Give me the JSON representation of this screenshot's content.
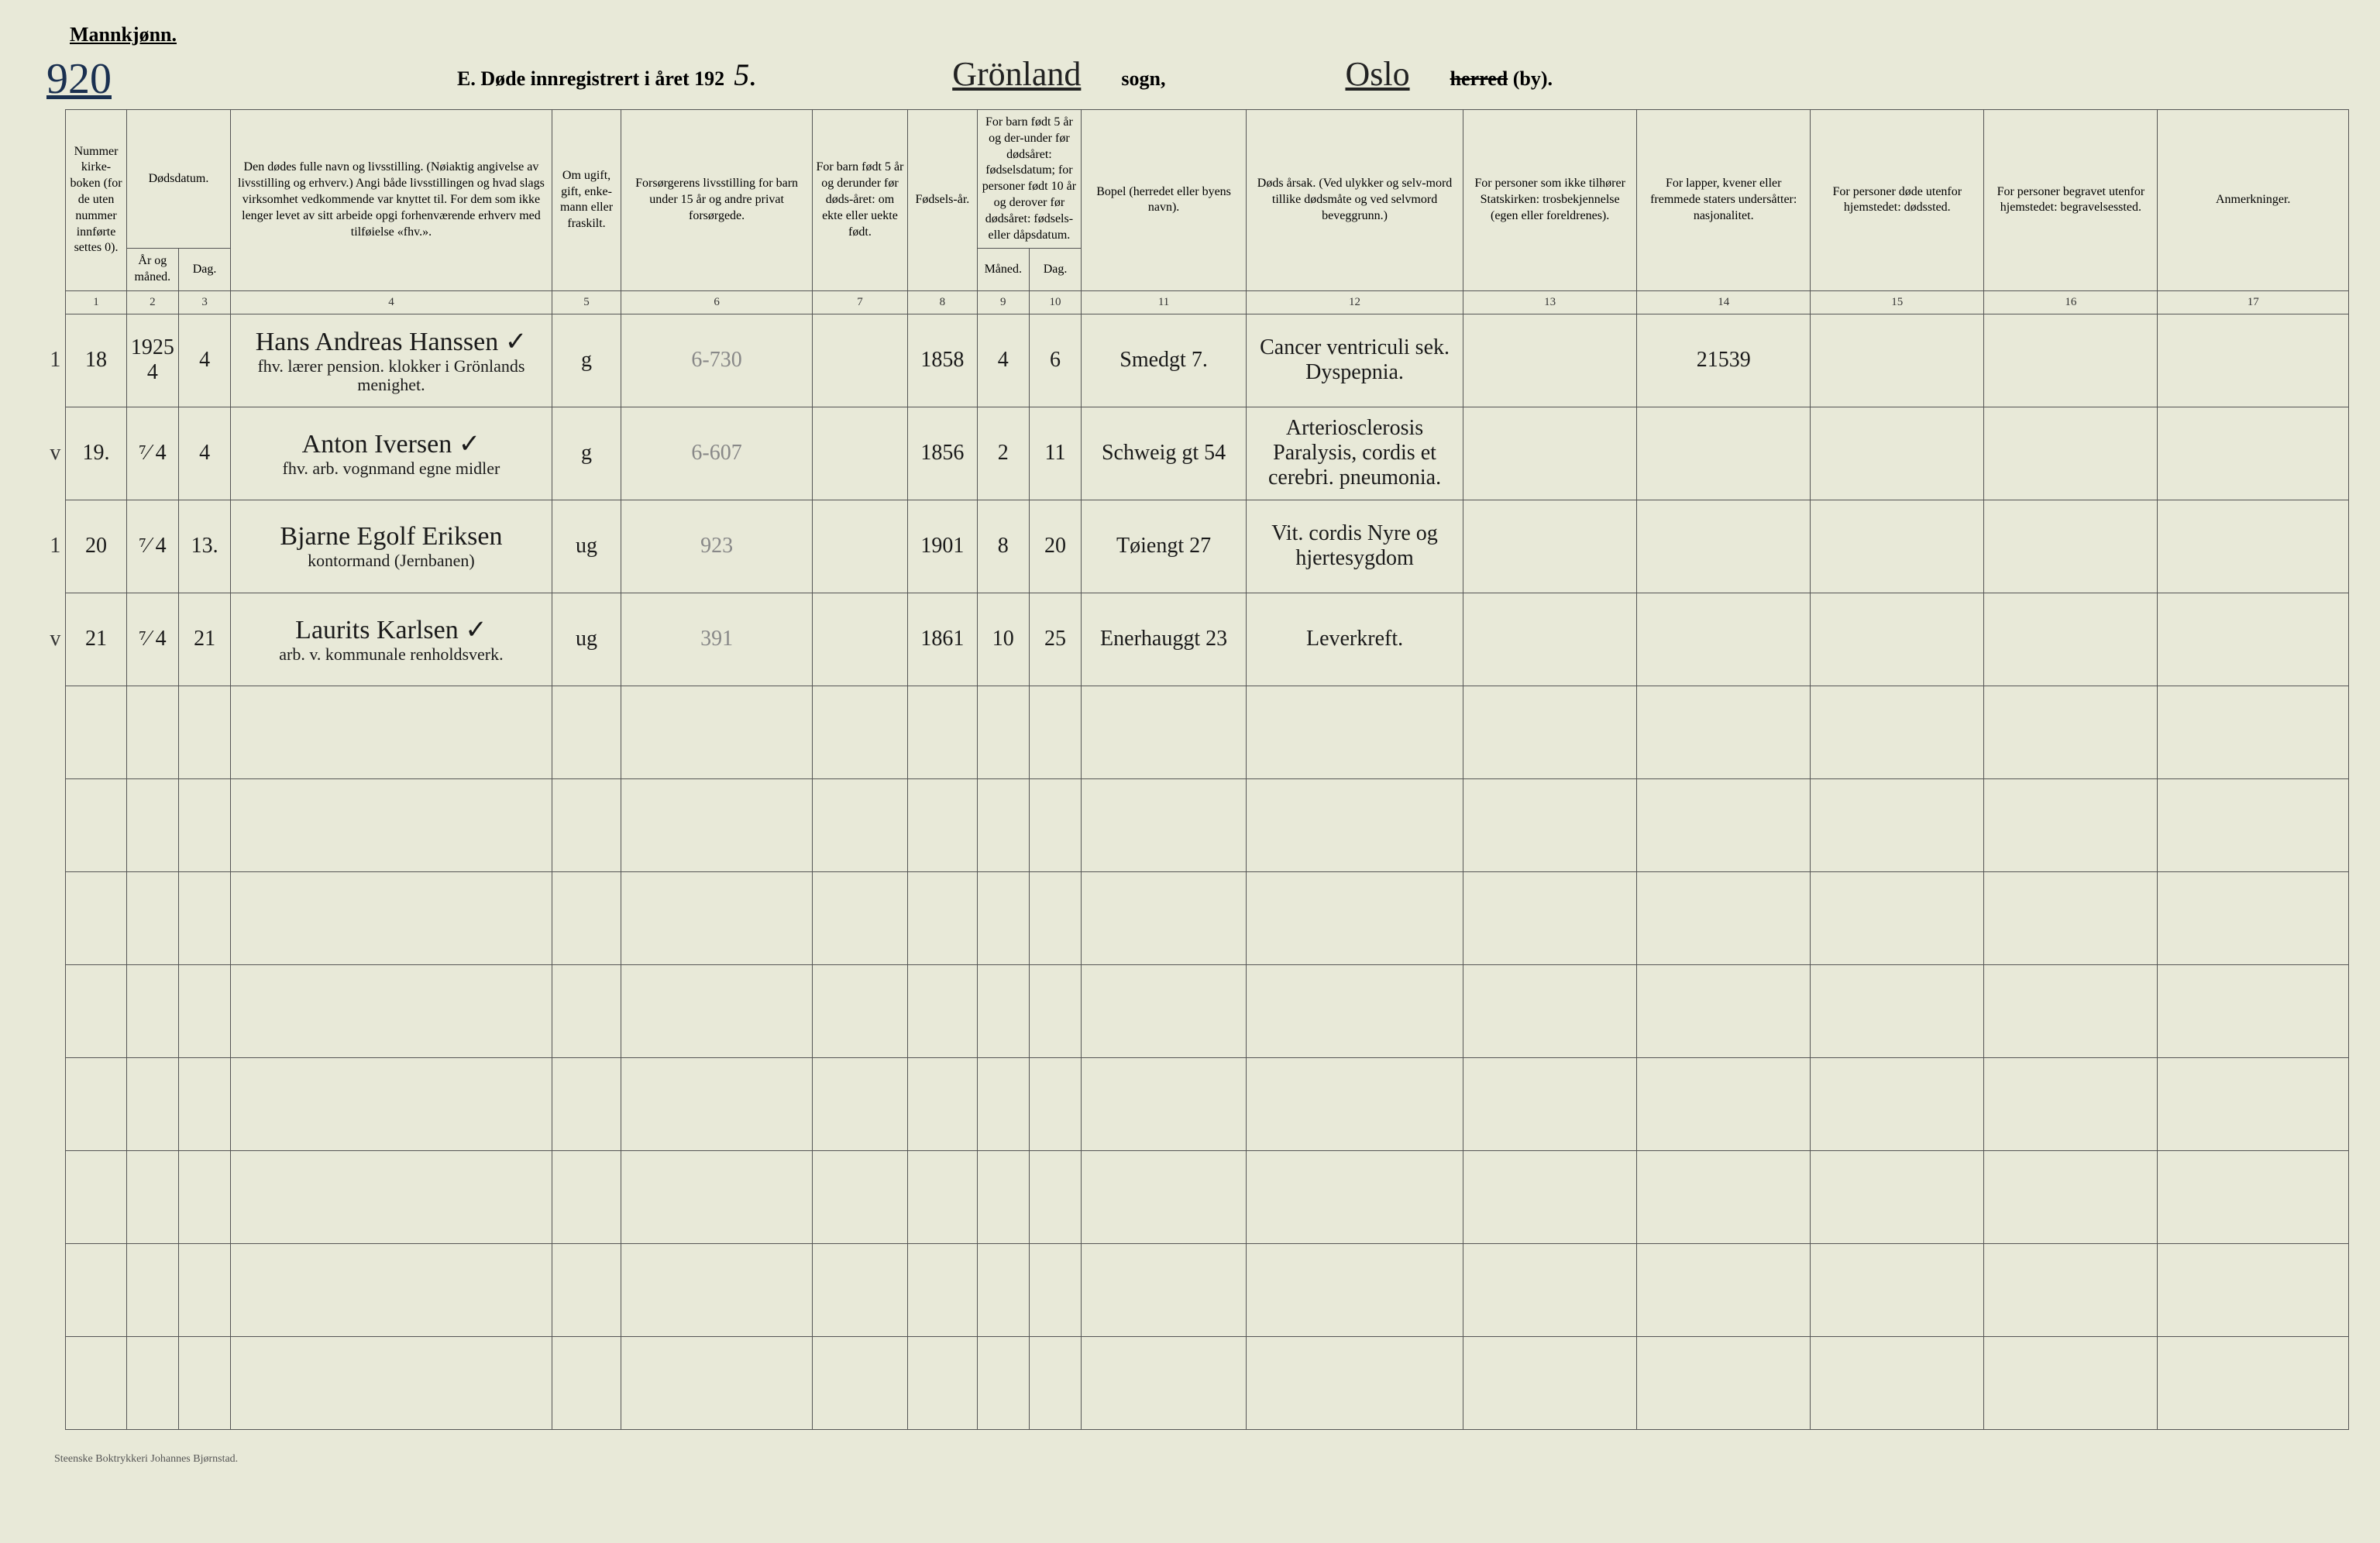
{
  "header": {
    "gender": "Mannkjønn.",
    "page_number": "920",
    "title_prefix": "E.  Døde innregistrert i året 192",
    "year_digit": "5.",
    "sogn": "Grönland",
    "sogn_label": "sogn,",
    "herred": "Oslo",
    "herred_label_struck": "herred",
    "herred_label_suffix": " (by)."
  },
  "column_headers": {
    "c1": "Nummer kirke-boken (for de uten nummer innførte settes 0).",
    "c2_group": "Dødsdatum.",
    "c2": "År og måned.",
    "c3": "Dag.",
    "c4": "Den dødes fulle navn og livsstilling. (Nøiaktig angivelse av livsstilling og erhverv.) Angi både livsstillingen og hvad slags virksomhet vedkommende var knyttet til. For dem som ikke lenger levet av sitt arbeide opgi forhenværende erhverv med tilføielse «fhv.».",
    "c5": "Om ugift, gift, enke-mann eller fraskilt.",
    "c6": "Forsørgerens livsstilling for barn under 15 år og andre privat forsørgede.",
    "c7": "For barn født 5 år og derunder før døds-året: om ekte eller uekte født.",
    "c8": "Fødsels-år.",
    "c9_group": "For barn født 5 år og der-under før dødsåret: fødselsdatum; for personer født 10 år og derover før dødsåret: fødsels- eller dåpsdatum.",
    "c9": "Måned.",
    "c10": "Dag.",
    "c11": "Bopel (herredet eller byens navn).",
    "c12": "Døds årsak. (Ved ulykker og selv-mord tillike dødsmåte og ved selvmord beveggrunn.)",
    "c13": "For personer som ikke tilhører Statskirken: trosbekjennelse (egen eller foreldrenes).",
    "c14": "For lapper, kvener eller fremmede staters undersåtter: nasjonalitet.",
    "c15": "For personer døde utenfor hjemstedet: dødssted.",
    "c16": "For personer begravet utenfor hjemstedet: begravelsessted.",
    "c17": "Anmerkninger."
  },
  "colnums": [
    "1",
    "2",
    "3",
    "4",
    "5",
    "6",
    "7",
    "8",
    "9",
    "10",
    "11",
    "12",
    "13",
    "14",
    "15",
    "16",
    "17"
  ],
  "rows": [
    {
      "margin": "1",
      "num": "18",
      "year_month": "1925 4",
      "day": "4",
      "name": "Hans Andreas Hanssen ✓",
      "name2": "fhv. lærer pension. klokker i Grönlands menighet.",
      "marital": "g",
      "provider": "6-730",
      "child5": "",
      "birthyear": "1858",
      "bm": "4",
      "bd": "6",
      "residence": "Smedgt 7.",
      "cause": "Cancer ventriculi sek. Dyspepnia.",
      "c14": "21539"
    },
    {
      "margin": "v",
      "num": "19.",
      "year_month": "⁷⁄ 4",
      "day": "4",
      "name": "Anton Iversen ✓",
      "name2": "fhv. arb. vognmand egne midler",
      "marital": "g",
      "provider": "6-607",
      "child5": "",
      "birthyear": "1856",
      "bm": "2",
      "bd": "11",
      "residence": "Schweig gt 54",
      "cause": "Arteriosclerosis Paralysis, cordis et cerebri. pneumonia.",
      "c14": ""
    },
    {
      "margin": "1",
      "num": "20",
      "year_month": "⁷⁄ 4",
      "day": "13.",
      "name": "Bjarne Egolf Eriksen",
      "name2": "kontormand (Jernbanen)",
      "marital": "ug",
      "provider": "923",
      "child5": "",
      "birthyear": "1901",
      "bm": "8",
      "bd": "20",
      "residence": "Tøiengt 27",
      "cause": "Vit. cordis Nyre og hjertesygdom",
      "c14": ""
    },
    {
      "margin": "v",
      "num": "21",
      "year_month": "⁷⁄ 4",
      "day": "21",
      "name": "Laurits Karlsen ✓",
      "name2": "arb. v. kommunale renholdsverk.",
      "marital": "ug",
      "provider": "391",
      "child5": "",
      "birthyear": "1861",
      "bm": "10",
      "bd": "25",
      "residence": "Enerhauggt 23",
      "cause": "Leverkreft.",
      "c14": ""
    }
  ],
  "empty_row_count": 8,
  "footer": "Steenske Boktrykkeri Johannes Bjørnstad."
}
